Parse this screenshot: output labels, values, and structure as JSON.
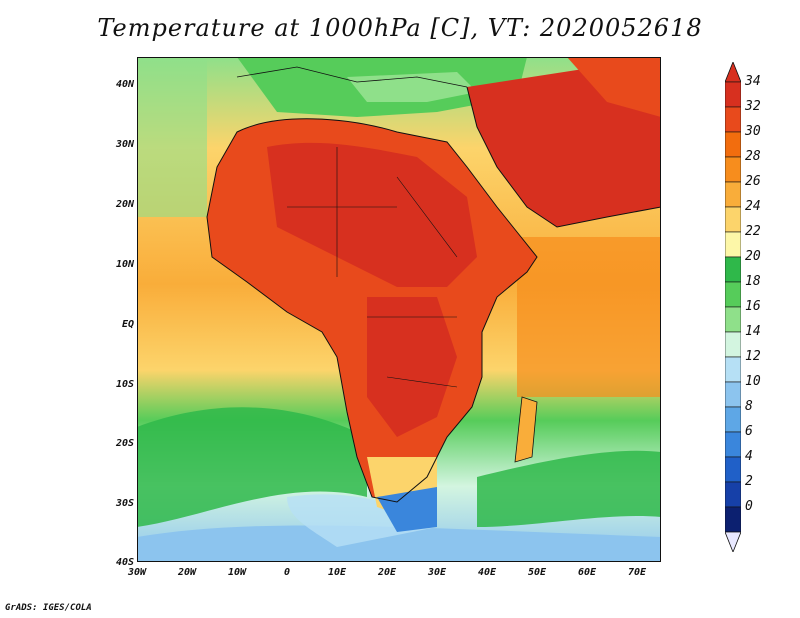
{
  "title": "Temperature at 1000hPa [C], VT: 2020052618",
  "credit": "GrADS: IGES/COLA",
  "map": {
    "lon_ticks": [
      "30W",
      "20W",
      "10W",
      "0",
      "10E",
      "20E",
      "30E",
      "40E",
      "50E",
      "60E",
      "70E"
    ],
    "lat_ticks": [
      "40N",
      "30N",
      "20N",
      "10N",
      "EQ",
      "10S",
      "20S",
      "30S",
      "40S"
    ],
    "lon_range": [
      -30,
      75
    ],
    "lat_range": [
      -40,
      44
    ]
  },
  "colorbar": {
    "labels": [
      "34",
      "32",
      "30",
      "28",
      "26",
      "24",
      "22",
      "20",
      "18",
      "16",
      "14",
      "12",
      "10",
      "8",
      "6",
      "4",
      "2",
      "0"
    ],
    "colors": [
      "#d7301f",
      "#e84a1c",
      "#f26d0e",
      "#f78d1d",
      "#f9ad3a",
      "#fcd46b",
      "#fdf7a8",
      "#2fb84a",
      "#56cc5a",
      "#8fe08a",
      "#d3f5e0",
      "#b6e0f5",
      "#8cc4ee",
      "#5ea7e6",
      "#3a86dc",
      "#2060c8",
      "#1640a8",
      "#0c2070"
    ]
  },
  "legend_units": "C"
}
